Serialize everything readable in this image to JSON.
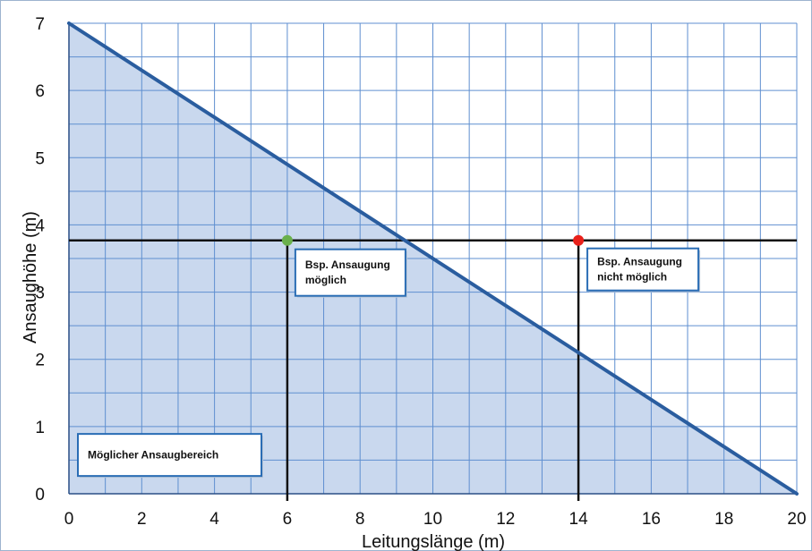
{
  "chart_data": {
    "type": "area",
    "title": "",
    "xlabel": "Leitungslänge (m)",
    "ylabel": "Ansaughöhe (m)",
    "xlim": [
      0,
      20
    ],
    "ylim": [
      0,
      7
    ],
    "x_ticks": [
      0,
      2,
      4,
      6,
      8,
      10,
      12,
      14,
      16,
      18,
      20
    ],
    "y_ticks": [
      0,
      1,
      2,
      3,
      4,
      5,
      6,
      7
    ],
    "grid": true,
    "boundary_line": {
      "x": [
        0,
        20
      ],
      "y": [
        7,
        0
      ]
    },
    "reference_height": 3.77,
    "example_points": [
      {
        "x": 6,
        "y": 3.77,
        "label": "Bsp. Ansaugung\nmöglich",
        "color": "#6ab04c"
      },
      {
        "x": 14,
        "y": 3.77,
        "label": "Bsp. Ansaugung\nnicht möglich",
        "color": "#e8201a"
      }
    ],
    "region_label": "Möglicher Ansaugbereich"
  },
  "colors": {
    "fill": "#c9d8ee",
    "line": "#2a5d9f",
    "grid": "#5f8fd0",
    "ref_line": "#111111",
    "box_border": "#2a6db5"
  }
}
